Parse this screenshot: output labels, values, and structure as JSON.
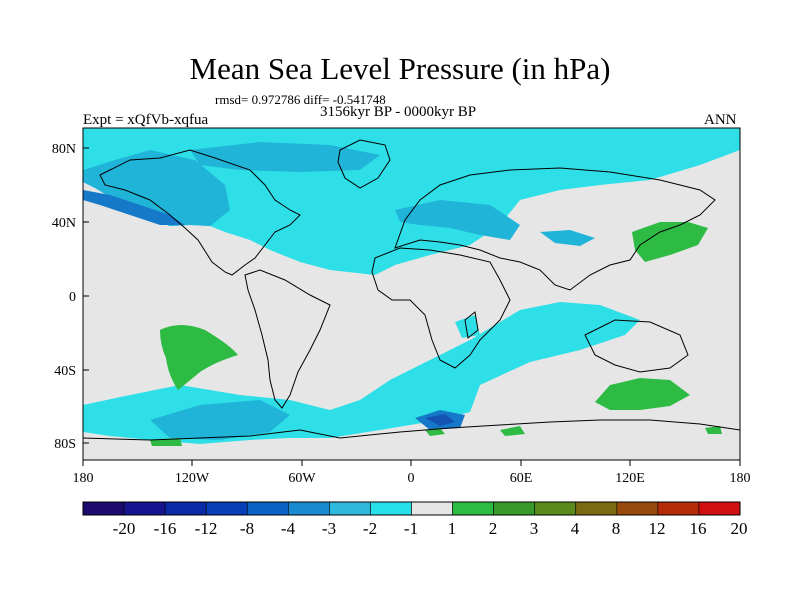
{
  "map": {
    "title": "Mean Sea Level Pressure (in hPa)",
    "stats": "rmsd= 0.972786 diff= -0.541748",
    "period": "3156kyr BP - 0000kyr BP",
    "experiment": "Expt = xQfVb-xqfua",
    "season": "ANN",
    "lat_labels": [
      "80N",
      "40N",
      "0",
      "40S",
      "80S"
    ],
    "lon_labels": [
      "180",
      "120W",
      "60W",
      "0",
      "60E",
      "120E",
      "180"
    ]
  },
  "colorbar": {
    "labels": [
      "-20",
      "-16",
      "-12",
      "-8",
      "-4",
      "-3",
      "-2",
      "-1",
      "1",
      "2",
      "3",
      "4",
      "8",
      "12",
      "16",
      "20"
    ],
    "colors": [
      "#1c0a6e",
      "#16148f",
      "#0a2aa8",
      "#083fb8",
      "#0a62c4",
      "#1a8ad2",
      "#2fb8de",
      "#28e0ea",
      "#e6e6e6",
      "#2ebb44",
      "#389a2a",
      "#5a8a1c",
      "#7a6a12",
      "#984a0c",
      "#b42c08",
      "#d01010"
    ]
  },
  "palette": {
    "ocean_base": "#e6e6e6",
    "neg_light": "#2fdfe8",
    "neg_mid": "#1fb4d8",
    "neg_dark": "#1578c8",
    "neg_deep": "#1452b4",
    "pos_light": "#2ebb44",
    "coast": "#000000"
  }
}
